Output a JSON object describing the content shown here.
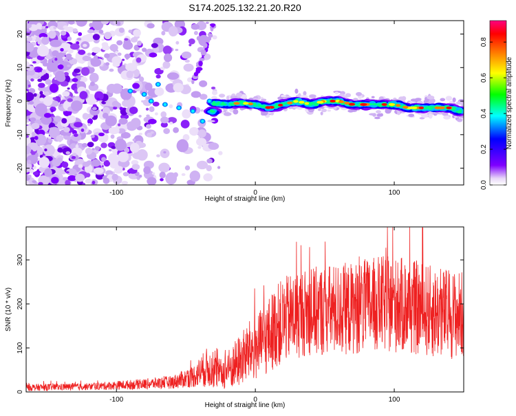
{
  "title": "S174.2025.132.21.20.R20",
  "chart_data": [
    {
      "type": "heatmap",
      "xlabel": "Height of straight line (km)",
      "ylabel": "Frequency (Hz)",
      "xlim": [
        -165,
        150
      ],
      "ylim": [
        -25,
        24
      ],
      "x_ticks": [
        -100,
        0,
        100
      ],
      "y_ticks": [
        -20,
        -10,
        0,
        10,
        20
      ],
      "colorbar": {
        "label": "Normalized spectral amplitude",
        "range": [
          0.0,
          0.92
        ],
        "ticks": [
          0.0,
          0.2,
          0.4,
          0.6,
          0.8
        ],
        "colors": [
          "#e8d8f8",
          "#7f00ff",
          "#0000ff",
          "#00ffff",
          "#00ff00",
          "#ffff00",
          "#ff8000",
          "#ff0000",
          "#ff0080"
        ]
      },
      "track": {
        "description_points_x": [
          -30,
          -20,
          -10,
          0,
          10,
          20,
          30,
          40,
          50,
          60,
          70,
          80,
          90,
          100,
          110,
          120,
          130,
          140,
          147
        ],
        "description_points_y": [
          -0.5,
          -1,
          -0.5,
          -1,
          -2,
          -1,
          0,
          -1,
          0,
          0,
          -1,
          -1,
          -1,
          -1,
          -2,
          -2,
          -2,
          -2,
          -3
        ]
      }
    },
    {
      "type": "line",
      "xlabel": "Height of straight line (km)",
      "ylabel": "SNR (10 * v/v)",
      "xlim": [
        -165,
        150
      ],
      "ylim": [
        0,
        375
      ],
      "x_ticks": [
        -100,
        0,
        100
      ],
      "y_ticks": [
        0,
        100,
        200,
        300
      ],
      "color": "#ee2020",
      "envelope_x": [
        -165,
        -120,
        -80,
        -60,
        -45,
        -35,
        -25,
        -15,
        -5,
        5,
        15,
        25,
        35,
        50,
        70,
        90,
        110,
        130,
        150
      ],
      "envelope_mean": [
        10,
        12,
        18,
        22,
        35,
        55,
        40,
        60,
        90,
        110,
        150,
        170,
        180,
        185,
        190,
        200,
        195,
        180,
        175
      ],
      "envelope_spread": [
        8,
        8,
        12,
        15,
        25,
        45,
        35,
        55,
        70,
        80,
        95,
        100,
        100,
        105,
        105,
        110,
        110,
        105,
        100
      ]
    }
  ]
}
